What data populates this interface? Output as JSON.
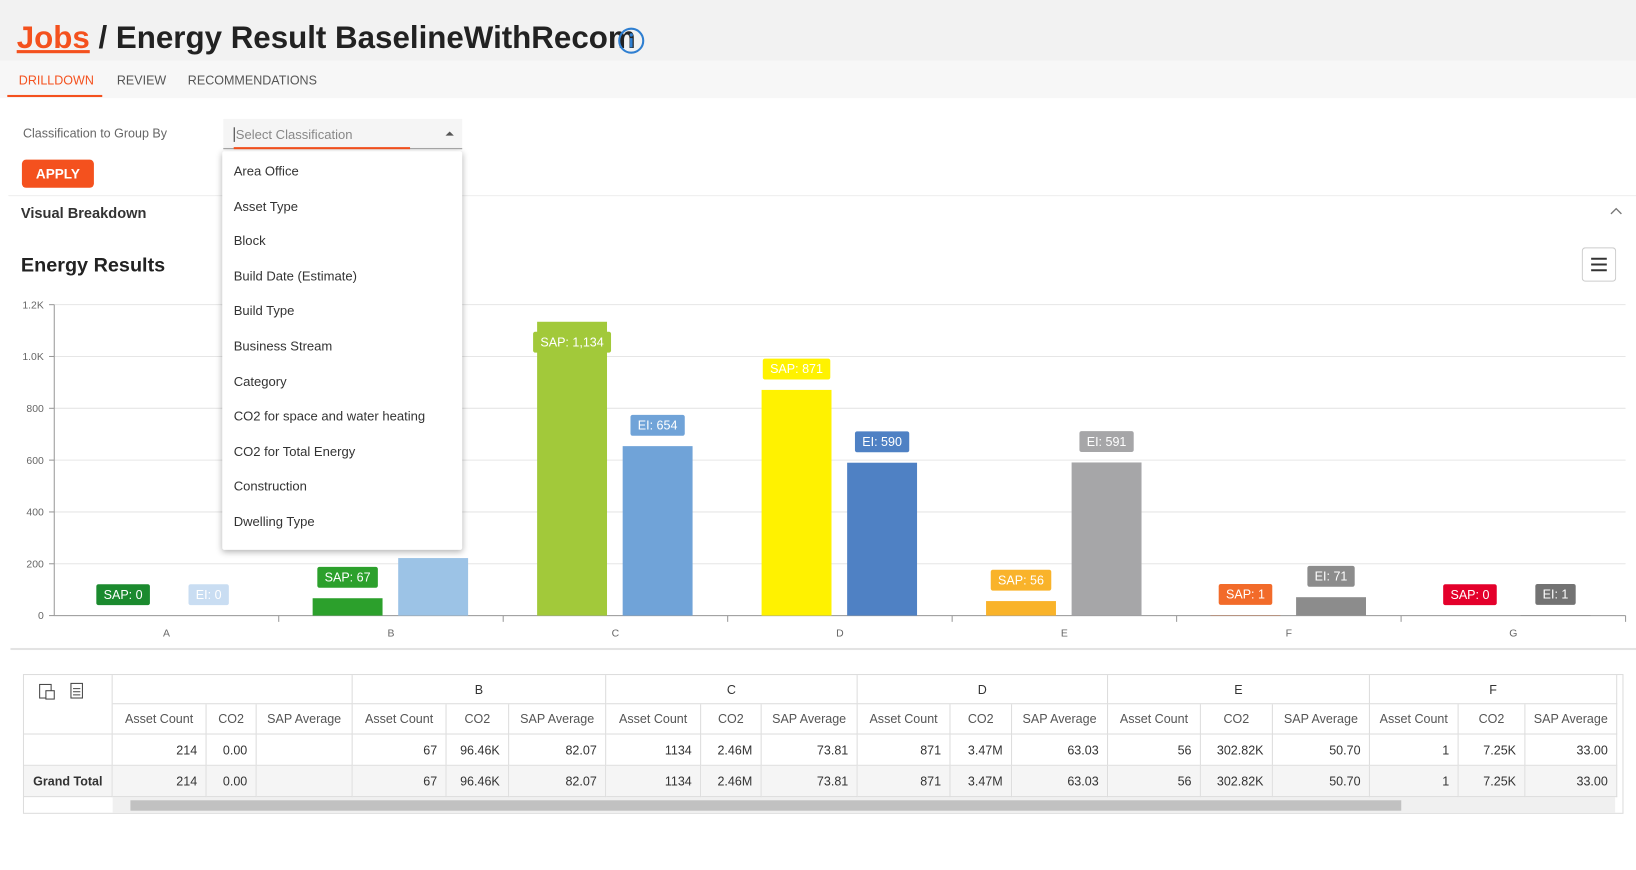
{
  "header": {
    "link": "Jobs",
    "separator": "/",
    "title": "Energy Result BaselineWithRecom"
  },
  "tabs": [
    "DRILLDOWN",
    "REVIEW",
    "RECOMMENDATIONS"
  ],
  "form": {
    "label": "Classification to Group By",
    "placeholder": "Select Classification",
    "button": "APPLY",
    "options": [
      "Area Office",
      "Asset Type",
      "Block",
      "Build Date (Estimate)",
      "Build Type",
      "Business Stream",
      "Category",
      "CO2 for space and water heating",
      "CO2 for Total Energy",
      "Construction",
      "Dwelling Type"
    ]
  },
  "section": "Visual Breakdown",
  "chart_data": {
    "type": "bar",
    "title": "Energy Results",
    "categories": [
      "A",
      "B",
      "C",
      "D",
      "E",
      "F",
      "G"
    ],
    "ylim": [
      0,
      1200
    ],
    "yticks": [
      0,
      200,
      400,
      600,
      800,
      {
        "value": 1000,
        "label": "1.0K"
      },
      {
        "value": 1200,
        "label": "1.2K"
      }
    ],
    "grid": true,
    "series": [
      {
        "values": [
          0,
          67,
          1134,
          871,
          56,
          1,
          0
        ],
        "value_labels": [
          "SAP: 0",
          "SAP: 67",
          "SAP: 1,134",
          "SAP: 871",
          "SAP: 56",
          "SAP: 1",
          "SAP: 0"
        ],
        "colors": [
          "#1b8a2e",
          "#2ca02c",
          "#a2c93a",
          "#fff200",
          "#f9b32a",
          "#f26b2a",
          "#e4002b"
        ]
      },
      {
        "values": [
          0,
          222,
          654,
          590,
          591,
          71,
          1
        ],
        "value_labels": [
          "EI: 0",
          null,
          "EI: 654",
          "EI: 590",
          "EI: 591",
          "EI: 71",
          "EI: 1"
        ],
        "colors": [
          "#c9ddf2",
          "#9cc3e6",
          "#70a3d8",
          "#4f81c4",
          "#a6a6a8",
          "#8c8c8c",
          "#737373"
        ]
      }
    ]
  },
  "table": {
    "groups": [
      "B",
      "C",
      "D",
      "E",
      "F"
    ],
    "sub_headers": [
      "Asset Count",
      "CO2",
      "SAP Average"
    ],
    "rows": [
      {
        "cells": [
          "214",
          "0.00",
          null,
          "67",
          "96.46K",
          "82.07",
          "1134",
          "2.46M",
          "73.81",
          "871",
          "3.47M",
          "63.03",
          "56",
          "302.82K",
          "50.70",
          "1",
          "7.25K",
          "33.00"
        ]
      },
      {
        "label": "Grand Total",
        "cells": [
          "214",
          "0.00",
          null,
          "67",
          "96.46K",
          "82.07",
          "1134",
          "2.46M",
          "73.81",
          "871",
          "3.47M",
          "63.03",
          "56",
          "302.82K",
          "50.70",
          "1",
          "7.25K",
          "33.00"
        ]
      }
    ]
  }
}
